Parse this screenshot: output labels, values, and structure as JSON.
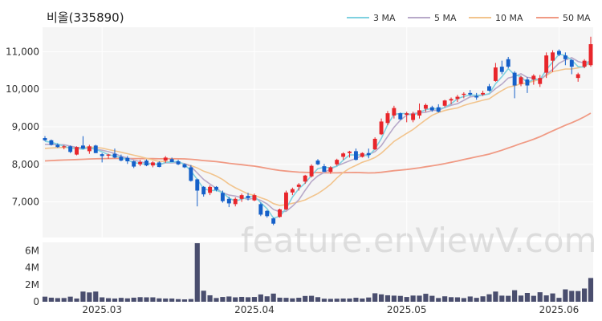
{
  "title": "비올(335890)",
  "watermark": "feature.enViewV.com",
  "colors": {
    "up": "#e8262b",
    "down": "#1560c9",
    "volume": "#4a4e6e",
    "ma3": "#7fd1e0",
    "ma5": "#b8a9c9",
    "ma10": "#f2c48d",
    "ma50": "#f09a84",
    "panel_bg": "#f5f5f5"
  },
  "chart_data": {
    "type": "candlestick",
    "price_axis": {
      "min": 6050,
      "max": 11650,
      "ticks": [
        7000,
        8000,
        9000,
        10000,
        11000
      ],
      "tick_labels": [
        "7,000",
        "8,000",
        "9,000",
        "10,000",
        "11,000"
      ]
    },
    "volume_axis": {
      "min": 0,
      "max": 7000000,
      "ticks": [
        0,
        2000000,
        4000000,
        6000000
      ],
      "tick_labels": [
        "0",
        "2M",
        "4M",
        "6M"
      ]
    },
    "x_labels": [
      {
        "index": 9,
        "label": "2025.03"
      },
      {
        "index": 33,
        "label": "2025.04"
      },
      {
        "index": 57,
        "label": "2025.05"
      },
      {
        "index": 81,
        "label": "2025.06"
      }
    ],
    "legend": [
      {
        "name": "3 MA",
        "color_key": "ma3"
      },
      {
        "name": "5 MA",
        "color_key": "ma5"
      },
      {
        "name": "10 MA",
        "color_key": "ma10"
      },
      {
        "name": "50 MA",
        "color_key": "ma50"
      }
    ],
    "candles": [
      [
        8700,
        8750,
        8620,
        8640
      ],
      [
        8640,
        8660,
        8500,
        8520
      ],
      [
        8520,
        8560,
        8440,
        8460
      ],
      [
        8460,
        8510,
        8400,
        8480
      ],
      [
        8480,
        8500,
        8300,
        8330
      ],
      [
        8260,
        8480,
        8240,
        8460
      ],
      [
        8500,
        8750,
        8400,
        8420
      ],
      [
        8350,
        8520,
        8280,
        8480
      ],
      [
        8500,
        8520,
        8300,
        8300
      ],
      [
        8270,
        8300,
        8050,
        8220
      ],
      [
        8230,
        8280,
        8150,
        8260
      ],
      [
        8280,
        8420,
        8160,
        8180
      ],
      [
        8200,
        8260,
        8080,
        8100
      ],
      [
        8170,
        8220,
        8010,
        8080
      ],
      [
        8080,
        8100,
        7900,
        7940
      ],
      [
        8000,
        8120,
        7950,
        8060
      ],
      [
        8100,
        8130,
        7950,
        7970
      ],
      [
        7970,
        8080,
        7920,
        8050
      ],
      [
        8050,
        8080,
        7920,
        7930
      ],
      [
        8100,
        8220,
        8040,
        8180
      ],
      [
        8140,
        8180,
        8060,
        8060
      ],
      [
        8080,
        8120,
        7980,
        8000
      ],
      [
        8000,
        8020,
        7900,
        7920
      ],
      [
        7920,
        7980,
        7540,
        7560
      ],
      [
        7600,
        7620,
        6880,
        7300
      ],
      [
        7400,
        7420,
        7140,
        7200
      ],
      [
        7240,
        7440,
        7180,
        7400
      ],
      [
        7400,
        7420,
        7280,
        7320
      ],
      [
        7240,
        7300,
        6980,
        7020
      ],
      [
        7080,
        7140,
        6860,
        6960
      ],
      [
        6940,
        7120,
        6880,
        7080
      ],
      [
        7080,
        7220,
        7000,
        7180
      ],
      [
        7160,
        7240,
        7040,
        7100
      ],
      [
        7040,
        7220,
        7020,
        7180
      ],
      [
        6940,
        6980,
        6620,
        6660
      ],
      [
        6760,
        6780,
        6580,
        6620
      ],
      [
        6560,
        6580,
        6380,
        6420
      ],
      [
        6600,
        6820,
        6580,
        6800
      ],
      [
        6800,
        7300,
        6780,
        7250
      ],
      [
        7250,
        7380,
        7180,
        7340
      ],
      [
        7400,
        7500,
        7300,
        7460
      ],
      [
        7540,
        7720,
        7480,
        7700
      ],
      [
        7680,
        8000,
        7650,
        7960
      ],
      [
        8100,
        8140,
        7980,
        8000
      ],
      [
        7950,
        8010,
        7800,
        7800
      ],
      [
        7800,
        7950,
        7750,
        7920
      ],
      [
        8000,
        8150,
        7960,
        8120
      ],
      [
        8200,
        8320,
        8120,
        8290
      ],
      [
        8300,
        8360,
        8180,
        8340
      ],
      [
        8350,
        8420,
        8100,
        8120
      ],
      [
        8200,
        8320,
        8180,
        8300
      ],
      [
        8300,
        8420,
        8160,
        8250
      ],
      [
        8400,
        8720,
        8380,
        8680
      ],
      [
        8800,
        9220,
        8780,
        9140
      ],
      [
        9100,
        9420,
        9040,
        9360
      ],
      [
        9300,
        9560,
        9220,
        9500
      ],
      [
        9360,
        9380,
        9180,
        9200
      ],
      [
        9320,
        9400,
        9120,
        9360
      ],
      [
        9180,
        9400,
        9120,
        9350
      ],
      [
        9300,
        9620,
        9220,
        9440
      ],
      [
        9480,
        9620,
        9400,
        9580
      ],
      [
        9520,
        9560,
        9400,
        9440
      ],
      [
        9520,
        9600,
        9380,
        9400
      ],
      [
        9560,
        9720,
        9520,
        9700
      ],
      [
        9700,
        9780,
        9600,
        9740
      ],
      [
        9740,
        9850,
        9660,
        9800
      ],
      [
        9850,
        9920,
        9760,
        9880
      ],
      [
        9900,
        9980,
        9820,
        9860
      ],
      [
        9820,
        9900,
        9720,
        9780
      ],
      [
        9860,
        9960,
        9820,
        9900
      ],
      [
        10080,
        10140,
        9940,
        9960
      ],
      [
        10220,
        10700,
        10200,
        10580
      ],
      [
        10600,
        10760,
        10400,
        10460
      ],
      [
        10800,
        10860,
        10560,
        10600
      ],
      [
        10440,
        10480,
        9760,
        10100
      ],
      [
        10140,
        10360,
        10080,
        10320
      ],
      [
        10260,
        10320,
        9900,
        10100
      ],
      [
        10260,
        10400,
        10120,
        10360
      ],
      [
        10140,
        10380,
        10060,
        10300
      ],
      [
        10440,
        10980,
        10300,
        10900
      ],
      [
        10760,
        11040,
        10460,
        10980
      ],
      [
        11020,
        11060,
        10880,
        10920
      ],
      [
        10900,
        10980,
        10640,
        10800
      ],
      [
        10780,
        10800,
        10400,
        10600
      ],
      [
        10300,
        10440,
        10200,
        10400
      ],
      [
        10600,
        10800,
        10560,
        10760
      ],
      [
        10640,
        11400,
        10600,
        11200
      ]
    ],
    "volume": [
      600000,
      480000,
      430000,
      440000,
      600000,
      380000,
      1200000,
      1100000,
      1200000,
      520000,
      420000,
      380000,
      460000,
      400000,
      480000,
      540000,
      520000,
      520000,
      400000,
      380000,
      380000,
      310000,
      280000,
      320000,
      6900000,
      1300000,
      760000,
      440000,
      560000,
      620000,
      520000,
      570000,
      530000,
      560000,
      860000,
      640000,
      960000,
      480000,
      460000,
      400000,
      470000,
      680000,
      700000,
      540000,
      360000,
      340000,
      360000,
      380000,
      380000,
      470000,
      380000,
      500000,
      1000000,
      870000,
      760000,
      720000,
      690000,
      560000,
      730000,
      720000,
      940000,
      700000,
      440000,
      640000,
      540000,
      520000,
      430000,
      620000,
      460000,
      640000,
      880000,
      1200000,
      720000,
      700000,
      1360000,
      730000,
      1040000,
      700000,
      1120000,
      750000,
      980000,
      460000,
      1460000,
      1280000,
      1260000,
      1560000,
      2800000
    ]
  }
}
